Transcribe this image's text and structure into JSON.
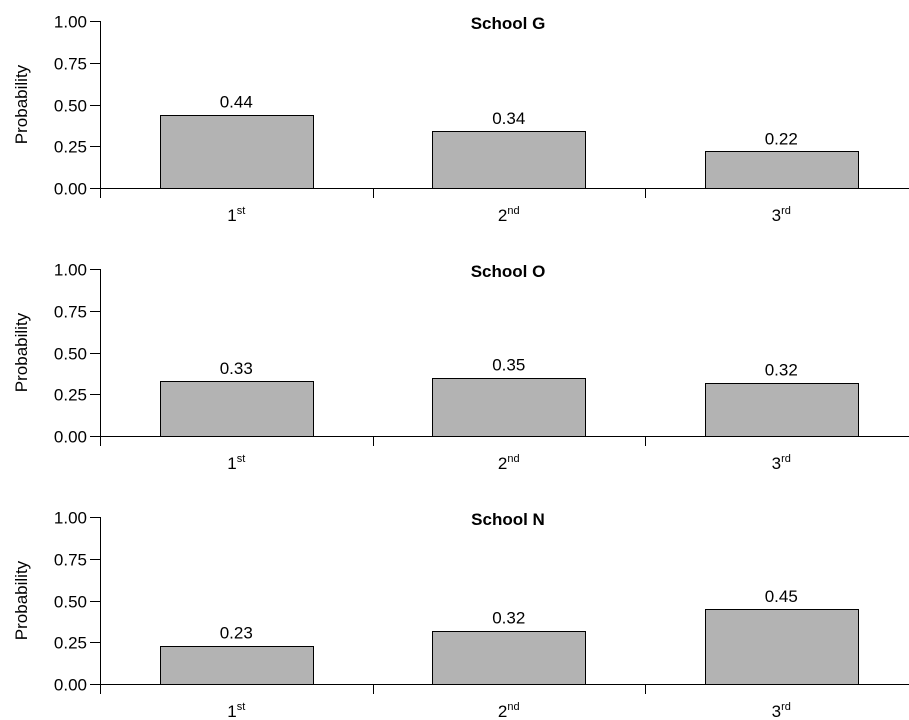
{
  "chart_data": [
    {
      "type": "bar",
      "title": "School G",
      "ylabel": "Probability",
      "xlabel": "",
      "ylim": [
        0,
        1
      ],
      "yticks": [
        "0.00",
        "0.25",
        "0.50",
        "0.75",
        "1.00"
      ],
      "categories": [
        {
          "base": "1",
          "sup": "st"
        },
        {
          "base": "2",
          "sup": "nd"
        },
        {
          "base": "3",
          "sup": "rd"
        }
      ],
      "values": [
        0.44,
        0.34,
        0.22
      ],
      "value_labels": [
        "0.44",
        "0.34",
        "0.22"
      ],
      "bar_color": "#b3b3b3",
      "grid": false
    },
    {
      "type": "bar",
      "title": "School O",
      "ylabel": "Probability",
      "xlabel": "",
      "ylim": [
        0,
        1
      ],
      "yticks": [
        "0.00",
        "0.25",
        "0.50",
        "0.75",
        "1.00"
      ],
      "categories": [
        {
          "base": "1",
          "sup": "st"
        },
        {
          "base": "2",
          "sup": "nd"
        },
        {
          "base": "3",
          "sup": "rd"
        }
      ],
      "values": [
        0.33,
        0.35,
        0.32
      ],
      "value_labels": [
        "0.33",
        "0.35",
        "0.32"
      ],
      "bar_color": "#b3b3b3",
      "grid": false
    },
    {
      "type": "bar",
      "title": "School N",
      "ylabel": "Probability",
      "xlabel": "",
      "ylim": [
        0,
        1
      ],
      "yticks": [
        "0.00",
        "0.25",
        "0.50",
        "0.75",
        "1.00"
      ],
      "categories": [
        {
          "base": "1",
          "sup": "st"
        },
        {
          "base": "2",
          "sup": "nd"
        },
        {
          "base": "3",
          "sup": "rd"
        }
      ],
      "values": [
        0.23,
        0.32,
        0.45
      ],
      "value_labels": [
        "0.23",
        "0.32",
        "0.45"
      ],
      "bar_color": "#b3b3b3",
      "grid": false
    }
  ]
}
